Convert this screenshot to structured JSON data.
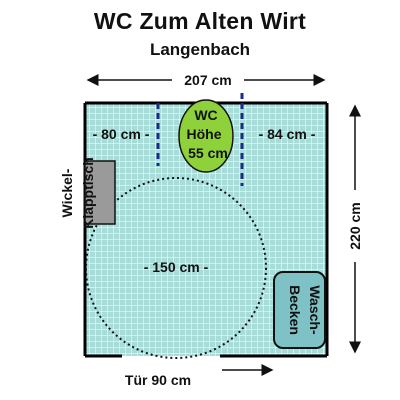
{
  "title": "WC Zum Alten Wirt",
  "subtitle": "Langenbach",
  "dimensions": {
    "width_label": "207 cm",
    "height_label": "220 cm",
    "left_gap_label": "- 80 cm -",
    "right_gap_label": "- 84 cm -",
    "turning_circle_label": "- 150 cm -",
    "door_label": "Tür 90 cm"
  },
  "fixtures": {
    "wc_line1": "WC",
    "wc_line2": "Höhe",
    "wc_line3": "55 cm",
    "changing_table_line1": "Wickel-",
    "changing_table_line2": "Klapptisch",
    "sink_line1": "Wasch-",
    "sink_line2": "Becken"
  },
  "colors": {
    "floor_tile": "#a8dcd8",
    "wall": "#000000",
    "wc": "#8fd13a",
    "sink": "#7fc2c6",
    "changing_table": "#9a9a9a",
    "grab_rail": "#1a2a8a"
  }
}
